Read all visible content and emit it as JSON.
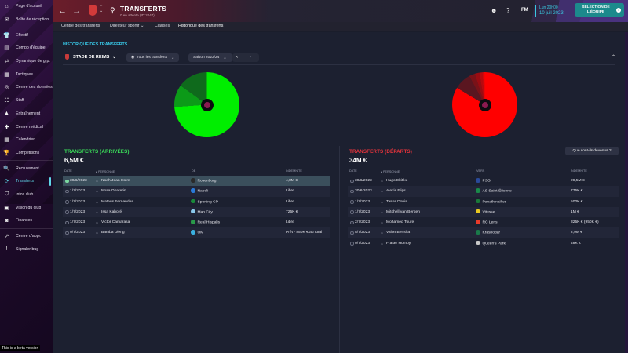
{
  "sidebar": {
    "items": [
      {
        "label": "Page d'accueil",
        "icon": "home-icon",
        "glyph": "⌂"
      },
      {
        "label": "Boîte de réception",
        "icon": "inbox-icon",
        "glyph": "✉"
      },
      {
        "label": "Effectif",
        "icon": "shirt-icon",
        "glyph": "👕"
      },
      {
        "label": "Compo d'équipe",
        "icon": "clipboard-icon",
        "glyph": "▤"
      },
      {
        "label": "Dynamique de grp.",
        "icon": "group-dynamics-icon",
        "glyph": "⇄"
      },
      {
        "label": "Tactiques",
        "icon": "tactics-icon",
        "glyph": "▦"
      },
      {
        "label": "Centre des données",
        "icon": "data-hub-icon",
        "glyph": "◎"
      },
      {
        "label": "Staff",
        "icon": "staff-icon",
        "glyph": "☷"
      },
      {
        "label": "Entraînement",
        "icon": "training-icon",
        "glyph": "▲"
      },
      {
        "label": "Centre médical",
        "icon": "medical-icon",
        "glyph": "✚"
      },
      {
        "label": "Calendrier",
        "icon": "calendar-icon",
        "glyph": "▦"
      },
      {
        "label": "Compétitions",
        "icon": "trophy-icon",
        "glyph": "🏆"
      },
      {
        "label": "Recrutement",
        "icon": "scouting-icon",
        "glyph": "🔍"
      },
      {
        "label": "Transferts",
        "icon": "transfers-icon",
        "glyph": "⟳",
        "active": true
      },
      {
        "label": "Infos club",
        "icon": "club-info-icon",
        "glyph": "⛉"
      },
      {
        "label": "Vision du club",
        "icon": "club-vision-icon",
        "glyph": "▣"
      },
      {
        "label": "Finances",
        "icon": "finances-icon",
        "glyph": "◙"
      },
      {
        "label": "Centre d'appr.",
        "icon": "development-icon",
        "glyph": "↗"
      },
      {
        "label": "Signaler bug",
        "icon": "bug-report-icon",
        "glyph": "!"
      }
    ],
    "beta_notice": "This is a beta version"
  },
  "header": {
    "title": "TRANSFERTS",
    "subtitle": "0 en attente (ID:2047)",
    "fm_logo": "FM",
    "date_time": "Lun 20h00",
    "date_day": "10 juil 2023",
    "team_selection_button": "SÉLECTION DE L'ÉQUIPE",
    "back_glyph": "←",
    "forward_glyph": "→"
  },
  "tabs": [
    {
      "label": "Centre des transferts"
    },
    {
      "label": "Directeur sportif ⌄"
    },
    {
      "label": "Clauses"
    },
    {
      "label": "Historique des transferts",
      "active": true
    }
  ],
  "filters": {
    "section_title": "HISTORIQUE DES TRANSFERTS",
    "club": "STADE DE REIMS",
    "transfer_type": "Tous les transferts",
    "season": "Saison 2023/24",
    "prev": "‹",
    "next": "›",
    "collapse": "⌃"
  },
  "chart_data": [
    {
      "type": "pie",
      "title": "Transferts (arrivées)",
      "categories": [
        "Noah Jean Holm",
        "Issa Kaboré",
        "Others"
      ],
      "values": [
        4.8,
        0.725,
        0.975
      ],
      "colors": [
        "#00ee00",
        "#0c9a18",
        "#0f6a1c"
      ],
      "note": "Donut showing share of 6,5M € incoming fees"
    },
    {
      "type": "pie",
      "title": "Transferts (départs)",
      "categories": [
        "Hugo Ekitike",
        "Valon Berisha",
        "Mitchell van Bergen",
        "Alexis Flips",
        "Tasos Donis",
        "Mohamed Toure",
        "Fraser Hornby"
      ],
      "values": [
        28.5,
        2.9,
        1.0,
        0.775,
        0.5,
        0.325,
        0.048
      ],
      "colors": [
        "#ff0000",
        "#5a1620",
        "#7a1218",
        "#9a0c12",
        "#b8090e",
        "#d4060a",
        "#e80404"
      ],
      "note": "Donut showing share of 34M € outgoing fees"
    }
  ],
  "arrivals": {
    "title": "TRANSFERTS (ARRIVÉES)",
    "total": "6,5M €",
    "columns": [
      "DATE",
      "▴ PERSONNE",
      "DE",
      "INDEMNITÉ"
    ],
    "rows": [
      {
        "date": "30/6/2023",
        "person": "Noah Jean Holm",
        "club": "Rosenborg",
        "fee": "4,8M €",
        "badge": "#2a2a2a"
      },
      {
        "date": "1/7/2023",
        "person": "Nosa Obaretin",
        "club": "Napoli",
        "fee": "Libre",
        "badge": "#2a7ad8"
      },
      {
        "date": "1/7/2023",
        "person": "Mateus Fernandes",
        "club": "Sporting CP",
        "fee": "Libre",
        "badge": "#1a8a3a"
      },
      {
        "date": "1/7/2023",
        "person": "Issa Kaboré",
        "club": "Man City",
        "fee": "725K €",
        "badge": "#8ac8ea"
      },
      {
        "date": "1/7/2023",
        "person": "Victor Camarasa",
        "club": "Real Hispalis",
        "fee": "Libre",
        "badge": "#2a9a4a"
      },
      {
        "date": "9/7/2023",
        "person": "Bamba Dieng",
        "club": "OM",
        "fee": "Prêt - 850K € au total",
        "badge": "#3ab0e0"
      }
    ]
  },
  "departures": {
    "title": "TRANSFERTS (DÉPARTS)",
    "total": "34M €",
    "what_became_button": "Que sont-ils devenus ?",
    "columns": [
      "DATE",
      "▴ PERSONNE",
      "VERS",
      "INDEMNITÉ"
    ],
    "rows": [
      {
        "date": "30/6/2023",
        "person": "Hugo Ekitike",
        "club": "PSG",
        "fee": "28,5M €",
        "badge": "#2a4a9a"
      },
      {
        "date": "30/6/2023",
        "person": "Alexis Flips",
        "club": "AS Saint-Étienne",
        "fee": "775K €",
        "badge": "#1a8a4a"
      },
      {
        "date": "1/7/2023",
        "person": "Tasos Donis",
        "club": "Panathinaikos",
        "fee": "500K €",
        "badge": "#1a7a3a"
      },
      {
        "date": "1/7/2023",
        "person": "Mitchell van Bergen",
        "club": "Vitesse",
        "fee": "1M €",
        "badge": "#e8c820"
      },
      {
        "date": "2/7/2023",
        "person": "Mohamed Toure",
        "club": "RC Lens",
        "fee": "325K € (950K €)",
        "badge": "#e83a2a"
      },
      {
        "date": "5/7/2023",
        "person": "Valon Berisha",
        "club": "Krasnodar",
        "fee": "2,9M €",
        "badge": "#1a7a4a"
      },
      {
        "date": "9/7/2023",
        "person": "Fraser Hornby",
        "club": "Queen's Park",
        "fee": "48K €",
        "badge": "#c8c8c8"
      }
    ]
  }
}
